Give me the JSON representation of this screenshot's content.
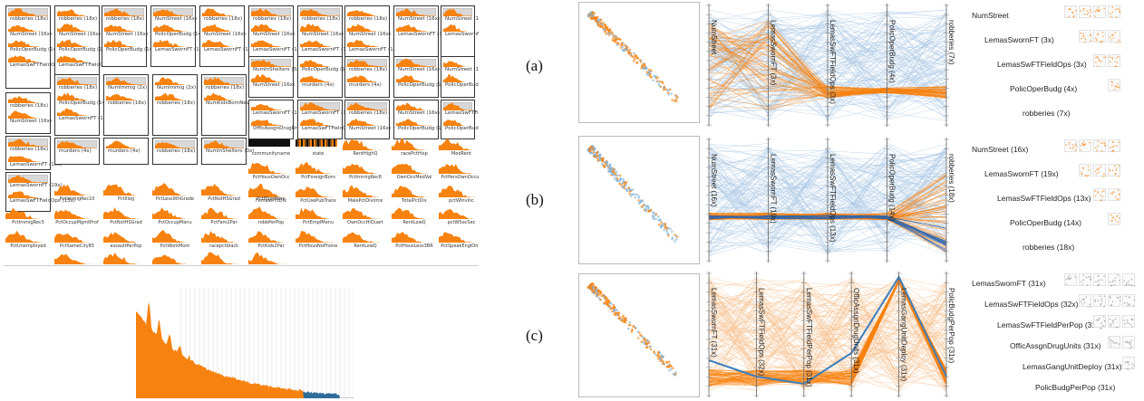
{
  "colors": {
    "orange": "#f7820f",
    "blue": "#3d7ebd",
    "lightblue": "#a8c6e4",
    "gray": "#d8d8d8"
  },
  "letters": [
    "(a)",
    "(b)",
    "(c)"
  ],
  "cards": [
    {
      "rows": [
        "robberies (18x)",
        "NumStreet (16x)",
        "PolicOperBudg (14x)",
        "LemasSwFTFieldOps (13x)"
      ]
    },
    {
      "rows": [
        "robberies (18x)",
        "NumStreet (16x)",
        "PolicOperBudg (14x)",
        "LemasSwFTFieldOps (13x)"
      ]
    },
    {
      "rows": [
        "robberies (18x)",
        "NumStreet (16x)",
        "PolicOperBudg (14x)",
        "LemasSwornFT (19x)"
      ]
    },
    {
      "rows": [
        "NumStreet (16x)",
        "PolicOperBudg (14x)",
        "LemasSwornFT (19x)"
      ]
    },
    {
      "rows": [
        "robberies (18x)",
        "NumStreet (16x)",
        "LemasSwornFT (19x)"
      ]
    },
    {
      "rows": [
        "robberies (18x)",
        "NumStreet (16x)",
        "LemasSwornFT (19x)"
      ]
    },
    {
      "rows": [
        "robberies (18x)",
        "NumStreet (16x)",
        "LemasSwornFT (19x)"
      ]
    },
    {
      "rows": [
        "robberies (18x)",
        "NumStreet (16x)",
        "LemasSwornFT (19x)"
      ]
    },
    {
      "rows": [
        "NumStreet (16x)",
        "LemasSwornFT (19x)"
      ]
    },
    {
      "rows": [
        "NumStreet (16x)",
        "LemasSwornFT (19x)"
      ]
    },
    {
      "rows": [
        "robberies (18x)",
        "NumStreet (16x)",
        "PolicOperBudg (14x)",
        "LemasSwFTFieldOps (13x)"
      ]
    },
    {
      "rows": [
        "robberies (18x)",
        "PolicOperBudg (14x)",
        "LemasSwornFT (19x)"
      ]
    },
    {
      "rows": [
        "NumImmig (2x)",
        "robberies (18x)"
      ]
    },
    {
      "rows": [
        "NumImmig (2x)",
        "robberies (18x)"
      ]
    },
    {
      "rows": [
        "robberies (18x)",
        "NumKidsBornNeverMr"
      ]
    },
    {
      "rows": [
        "NumInShelters (3x)",
        "NumStreet (16x)"
      ]
    },
    {
      "rows": [
        "PolicOperBudg (14x)",
        "murders (4x)",
        "LemasSwornFT (19x)"
      ]
    },
    {
      "rows": [
        "robberies (18x)",
        "murders (4x)",
        "LemasSwornFT (19x)"
      ]
    },
    {
      "rows": [
        "NumStreet (16x)",
        "PolicOperBudg (14x)",
        "LemasSwornFT (19x)"
      ]
    },
    {
      "rows": [
        "NumStreet (16x)",
        "PolicOperBudg (14x)",
        "LemasSwornFT (19x)"
      ]
    },
    {
      "rows": [
        "robberies (18x)",
        "LemasSwornFT (19x)"
      ]
    },
    {
      "rows": [
        "murders (4x)",
        "LemasSwornFT (19x)"
      ]
    },
    {
      "rows": [
        "murders (4x)",
        "LemasSwornFT (19x)"
      ]
    },
    {
      "rows": [
        "robberies (18x)",
        "LemasSwornFT (19x)"
      ]
    },
    {
      "rows": [
        "NumInShelters (3x)",
        "LemasSwornFT (19x)"
      ]
    },
    {
      "rows": [
        "LemasSwornFT (19x)",
        "OfficAssgnDrugUnits"
      ]
    },
    {
      "rows": [
        "LemasSwornFT (19x)",
        "LemasSwFTFieldOps (13x)"
      ]
    },
    {
      "rows": [
        "robberies (18x)",
        "NumStreet (16x)"
      ]
    },
    {
      "rows": [
        "NumStreet (16x)",
        "PolicOperBudg (14x)"
      ]
    },
    {
      "rows": [
        "LemasSwFTFieldOps (13x)",
        "PolicOperBudg (14x)"
      ]
    },
    {
      "rows": [
        "LemasSwornFT (19x)",
        "LemasSwFTFieldOps (13x)"
      ]
    }
  ],
  "singles": [
    "communityname",
    "state",
    "RentHighQ",
    "racePctHisp",
    "MedRent",
    "PctHousOwnOcc",
    "PctForeignBorn",
    "PctImmigRec8",
    "OwnOccMedVal",
    "PctPersOwnOccup",
    "FemalePctDiv",
    "PctUsePubTrans",
    "MalePctDivorce",
    "TotalPctDiv",
    "pctWInvInc",
    "PctImmigRec10",
    "PctIlleg",
    "PctLess9thGrade",
    "PctNotHSGrad",
    "PctBSorMore",
    "PctImmigRec5",
    "PctOccupMgmtProf",
    "PctNotHSGrad",
    "PctOccupManu",
    "PctFam2Par",
    "robbPerPop",
    "PctEmplManu",
    "OwnOccHiQuart",
    "RentLowQ",
    "pctWSocSec",
    "PctUnemployed",
    "PctSameCity85",
    "assaultPerPop",
    "PctWorkMom",
    "racepctblack",
    "PctKids2Par",
    "PctHousNoPhone",
    "RentLowQ",
    "PctHousLess3BR",
    "PctSpeakEnglOnly",
    "PctRecImmig10",
    "assaults",
    "PctTeen2Par",
    "MedNumBR",
    "PctPopUnderPov"
  ],
  "panels": {
    "a": {
      "axes": [
        "NumStreet",
        "LemasSwornFT (3x)",
        "LemasSwFTFieldOps (3x)",
        "PolicOperBudg (4x)",
        "robberies (7x)"
      ],
      "spm_labels": [
        "NumStreet",
        "LemasSwornFT (3x)",
        "LemasSwFTFieldOps (3x)",
        "PolicOperBudg (4x)",
        "robberies (7x)"
      ]
    },
    "b": {
      "axes": [
        "NumStreet (16x)",
        "LemasSwornFT (19x)",
        "LemasSwFTFieldOps (13x)",
        "PolicOperBudg (14x)",
        "robberies (18x)"
      ],
      "spm_labels": [
        "NumStreet (16x)",
        "LemasSwornFT (19x)",
        "LemasSwFTFieldOps (13x)",
        "PolicOperBudg (14x)",
        "robberies (18x)"
      ]
    },
    "c": {
      "axes": [
        "LemasSwornFT (31x)",
        "LemasSwFTFieldOps (32x)",
        "LemasSwFTFieldPerPop (31x)",
        "OfficAssgnDrugUnits (31x)",
        "LemasGangUnitDeploy (31x)",
        "PolicBudgPerPop (31x)"
      ],
      "spm_labels": [
        "LemasSwornFT (31x)",
        "LemasSwFTFieldOps (32x)",
        "LemasSwFTFieldPerPop (31x)",
        "OfficAssgnDrugUnits (31x)",
        "LemasGangUnitDeploy (31x)",
        "PolicBudgPerPop (31x)"
      ]
    }
  }
}
